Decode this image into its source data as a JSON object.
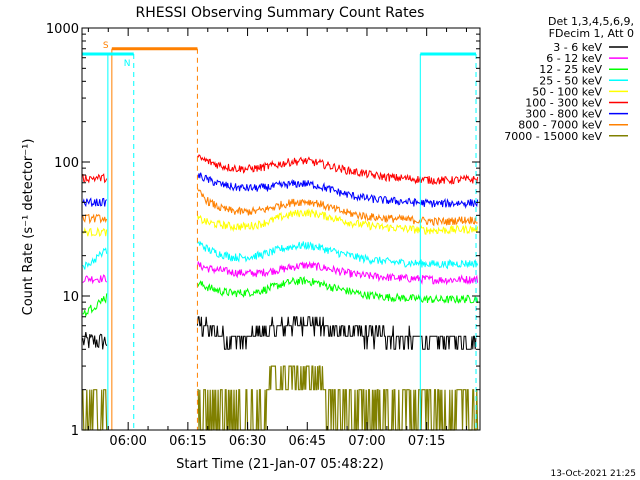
{
  "chart_data": {
    "type": "line",
    "title": "RHESSI Observing Summary Count Rates",
    "xlabel": "Start Time (21-Jan-07 05:48:22)",
    "ylabel": "Count Rate (s⁻¹ detector⁻¹)",
    "y_scale": "log",
    "ylim": [
      1,
      1000
    ],
    "xlim_minutes": [
      0,
      100
    ],
    "y_ticks": [
      {
        "value": 1,
        "label": "1"
      },
      {
        "value": 10,
        "label": "10"
      },
      {
        "value": 100,
        "label": "100"
      },
      {
        "value": 1000,
        "label": "1000"
      }
    ],
    "x_ticks": [
      {
        "minute": 11.6,
        "label": "06:00"
      },
      {
        "minute": 26.6,
        "label": "06:15"
      },
      {
        "minute": 41.6,
        "label": "06:30"
      },
      {
        "minute": 56.6,
        "label": "06:45"
      },
      {
        "minute": 71.6,
        "label": "07:00"
      },
      {
        "minute": 86.6,
        "label": "07:15"
      }
    ],
    "legend_position": "right",
    "legend_header": [
      "Det 1,3,4,5,6,9,",
      "FDecim 1, Att 0"
    ],
    "data_gap_minutes": [
      6.5,
      29.0
    ],
    "series": [
      {
        "name": "3 - 6 keV",
        "color": "#000000",
        "before": 4.6,
        "values": [
          [
            29,
            6.2
          ],
          [
            32,
            5.6
          ],
          [
            35,
            5.0
          ],
          [
            38,
            4.6
          ],
          [
            41,
            4.6
          ],
          [
            44,
            5.2
          ],
          [
            47,
            5.6
          ],
          [
            50,
            5.9
          ],
          [
            53,
            6.3
          ],
          [
            56,
            6.6
          ],
          [
            59,
            6.1
          ],
          [
            62,
            5.8
          ],
          [
            65,
            5.5
          ],
          [
            68,
            5.4
          ],
          [
            71,
            5.2
          ],
          [
            74,
            5.1
          ],
          [
            77,
            5.0
          ],
          [
            80,
            4.8
          ],
          [
            83,
            4.7
          ],
          [
            86,
            4.7
          ],
          [
            89,
            4.7
          ],
          [
            92,
            4.7
          ],
          [
            95,
            4.7
          ]
        ]
      },
      {
        "name": "6 - 12 keV",
        "color": "#ff00ff",
        "before": 13.5,
        "values": [
          [
            29,
            17
          ],
          [
            32,
            16
          ],
          [
            35,
            15.5
          ],
          [
            38,
            15
          ],
          [
            41,
            14.8
          ],
          [
            44,
            14.8
          ],
          [
            47,
            15.3
          ],
          [
            50,
            15.8
          ],
          [
            53,
            16.5
          ],
          [
            56,
            17
          ],
          [
            59,
            16.6
          ],
          [
            62,
            16
          ],
          [
            65,
            15.2
          ],
          [
            68,
            14.6
          ],
          [
            71,
            14.2
          ],
          [
            74,
            14
          ],
          [
            77,
            13.8
          ],
          [
            80,
            13.6
          ],
          [
            83,
            13.5
          ],
          [
            86,
            13.4
          ],
          [
            89,
            13.2
          ],
          [
            92,
            13.2
          ],
          [
            95,
            13.3
          ]
        ]
      },
      {
        "name": "12 - 25 keV",
        "color": "#00ff00",
        "before": 9.5,
        "values": [
          [
            29,
            12.5
          ],
          [
            32,
            11.5
          ],
          [
            35,
            10.8
          ],
          [
            38,
            10.5
          ],
          [
            41,
            10.6
          ],
          [
            44,
            10.8
          ],
          [
            47,
            11.4
          ],
          [
            50,
            12.2
          ],
          [
            53,
            12.8
          ],
          [
            56,
            13
          ],
          [
            59,
            12.6
          ],
          [
            62,
            11.8
          ],
          [
            65,
            11.2
          ],
          [
            68,
            10.7
          ],
          [
            71,
            10.2
          ],
          [
            74,
            10
          ],
          [
            77,
            9.8
          ],
          [
            80,
            9.7
          ],
          [
            83,
            9.6
          ],
          [
            86,
            9.5
          ],
          [
            89,
            9.4
          ],
          [
            92,
            9.4
          ],
          [
            95,
            9.5
          ]
        ]
      },
      {
        "name": "25 - 50 keV",
        "color": "#00ffff",
        "before": 21,
        "values": [
          [
            29,
            25
          ],
          [
            32,
            22
          ],
          [
            35,
            20.5
          ],
          [
            38,
            19.5
          ],
          [
            41,
            19.5
          ],
          [
            44,
            20
          ],
          [
            47,
            21
          ],
          [
            50,
            22.5
          ],
          [
            53,
            23.5
          ],
          [
            56,
            24
          ],
          [
            59,
            23.3
          ],
          [
            62,
            22
          ],
          [
            65,
            20.8
          ],
          [
            68,
            19.8
          ],
          [
            71,
            19
          ],
          [
            74,
            18.5
          ],
          [
            77,
            18
          ],
          [
            80,
            17.8
          ],
          [
            83,
            17.6
          ],
          [
            86,
            17.5
          ],
          [
            89,
            17.3
          ],
          [
            92,
            17.3
          ],
          [
            95,
            17.5
          ]
        ]
      },
      {
        "name": "50 - 100 keV",
        "color": "#ffff00",
        "before": 30,
        "values": [
          [
            29,
            38
          ],
          [
            32,
            35
          ],
          [
            35,
            34
          ],
          [
            38,
            33
          ],
          [
            41,
            33
          ],
          [
            44,
            34
          ],
          [
            47,
            36
          ],
          [
            50,
            39
          ],
          [
            53,
            41
          ],
          [
            56,
            42
          ],
          [
            59,
            41
          ],
          [
            62,
            39
          ],
          [
            65,
            37
          ],
          [
            68,
            35
          ],
          [
            71,
            34
          ],
          [
            74,
            33
          ],
          [
            77,
            32.5
          ],
          [
            80,
            32
          ],
          [
            83,
            31.5
          ],
          [
            86,
            31
          ],
          [
            89,
            31
          ],
          [
            92,
            31
          ],
          [
            95,
            31.5
          ]
        ]
      },
      {
        "name": "100 - 300 keV",
        "color": "#ff0000",
        "before": 76,
        "values": [
          [
            29,
            108
          ],
          [
            32,
            100
          ],
          [
            35,
            94
          ],
          [
            38,
            90
          ],
          [
            41,
            89
          ],
          [
            44,
            90
          ],
          [
            47,
            93
          ],
          [
            50,
            97
          ],
          [
            53,
            101
          ],
          [
            56,
            102
          ],
          [
            59,
            99
          ],
          [
            62,
            94
          ],
          [
            65,
            89
          ],
          [
            68,
            85
          ],
          [
            71,
            82
          ],
          [
            74,
            79
          ],
          [
            77,
            77
          ],
          [
            80,
            76
          ],
          [
            83,
            75
          ],
          [
            86,
            74
          ],
          [
            89,
            73
          ],
          [
            92,
            73
          ],
          [
            95,
            74
          ]
        ]
      },
      {
        "name": "300 - 800 keV",
        "color": "#0000ff",
        "before": 50,
        "values": [
          [
            29,
            80
          ],
          [
            32,
            73
          ],
          [
            35,
            68
          ],
          [
            38,
            65
          ],
          [
            41,
            64
          ],
          [
            44,
            64
          ],
          [
            47,
            65
          ],
          [
            50,
            67
          ],
          [
            53,
            68.5
          ],
          [
            56,
            69
          ],
          [
            59,
            67
          ],
          [
            62,
            63
          ],
          [
            65,
            59
          ],
          [
            68,
            56
          ],
          [
            71,
            54
          ],
          [
            74,
            52.5
          ],
          [
            77,
            51.5
          ],
          [
            80,
            51
          ],
          [
            83,
            50
          ],
          [
            86,
            49.5
          ],
          [
            89,
            49
          ],
          [
            92,
            49
          ],
          [
            95,
            49.5
          ]
        ]
      },
      {
        "name": "800 - 7000 keV",
        "color": "#ff8000",
        "before": 38,
        "values": [
          [
            29,
            60
          ],
          [
            32,
            50
          ],
          [
            35,
            45
          ],
          [
            38,
            43
          ],
          [
            41,
            42.5
          ],
          [
            44,
            43
          ],
          [
            47,
            45
          ],
          [
            50,
            48
          ],
          [
            53,
            50
          ],
          [
            56,
            51
          ],
          [
            59,
            49.5
          ],
          [
            62,
            46
          ],
          [
            65,
            43
          ],
          [
            68,
            41
          ],
          [
            71,
            39.5
          ],
          [
            74,
            38.5
          ],
          [
            77,
            38
          ],
          [
            80,
            37.5
          ],
          [
            83,
            37
          ],
          [
            86,
            36.5
          ],
          [
            89,
            36
          ],
          [
            92,
            36
          ],
          [
            95,
            37
          ]
        ]
      },
      {
        "name": "7000 - 15000 keV",
        "color": "#808000",
        "before": 1.5,
        "values": [
          [
            29,
            1.6
          ],
          [
            38,
            1.6
          ],
          [
            46,
            1.7
          ],
          [
            48,
            2.7
          ],
          [
            52,
            2.9
          ],
          [
            56,
            3.1
          ],
          [
            60,
            2.9
          ],
          [
            62,
            1.8
          ],
          [
            70,
            1.6
          ],
          [
            80,
            1.6
          ],
          [
            95,
            1.6
          ]
        ]
      }
    ],
    "annotations": [
      {
        "text": "S",
        "color": "#ff8000",
        "minute_start": 7.5,
        "minute_end": 29.0,
        "level": 700,
        "marker_line_minute": 7.5,
        "end_dash_minute": 29.0
      },
      {
        "text": "N",
        "color": "#00ffff",
        "minute_start": 0,
        "minute_end": 13.0,
        "level": 640,
        "marker_line_minute": 6.5,
        "end_dash_minute": 13.0
      },
      {
        "text": "",
        "color": "#00ffff",
        "minute_start": 85.0,
        "minute_end": 99.0,
        "level": 640,
        "marker_line_minute": 85.0,
        "end_dash_minute": 99.0
      }
    ],
    "footer_date": "13-Oct-2021 21:25"
  }
}
